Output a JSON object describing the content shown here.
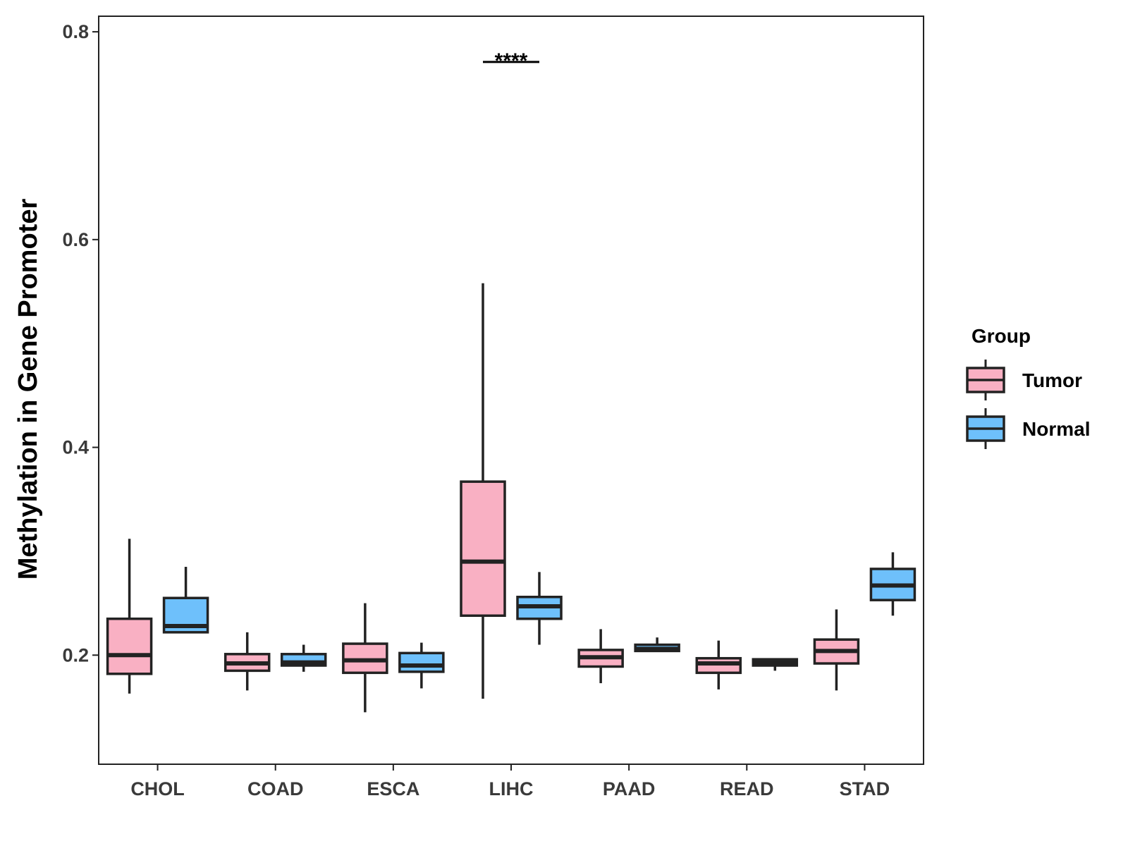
{
  "chart_data": {
    "type": "boxplot",
    "title": "",
    "xlabel": "",
    "ylabel": "Methylation in Gene Promoter",
    "ylim": [
      0.095,
      0.815
    ],
    "yticks": [
      "0.2",
      "0.4",
      "0.6",
      "0.8"
    ],
    "categories": [
      "CHOL",
      "COAD",
      "ESCA",
      "LIHC",
      "PAAD",
      "READ",
      "STAD"
    ],
    "legend": {
      "title": "Group",
      "position": "right",
      "entries": [
        "Tumor",
        "Normal"
      ]
    },
    "colors": {
      "Tumor": "#f9b0c3",
      "Normal": "#6ec0fb",
      "outline": "#222222"
    },
    "series": [
      {
        "name": "Tumor",
        "boxes": [
          {
            "min": 0.163,
            "q1": 0.182,
            "median": 0.2,
            "q3": 0.235,
            "max": 0.312
          },
          {
            "min": 0.166,
            "q1": 0.185,
            "median": 0.192,
            "q3": 0.201,
            "max": 0.222
          },
          {
            "min": 0.145,
            "q1": 0.183,
            "median": 0.195,
            "q3": 0.211,
            "max": 0.25
          },
          {
            "min": 0.158,
            "q1": 0.238,
            "median": 0.29,
            "q3": 0.367,
            "max": 0.558
          },
          {
            "min": 0.173,
            "q1": 0.189,
            "median": 0.198,
            "q3": 0.205,
            "max": 0.225
          },
          {
            "min": 0.167,
            "q1": 0.183,
            "median": 0.192,
            "q3": 0.197,
            "max": 0.214
          },
          {
            "min": 0.166,
            "q1": 0.192,
            "median": 0.204,
            "q3": 0.215,
            "max": 0.244
          }
        ]
      },
      {
        "name": "Normal",
        "boxes": [
          {
            "min": 0.221,
            "q1": 0.222,
            "median": 0.228,
            "q3": 0.255,
            "max": 0.285
          },
          {
            "min": 0.184,
            "q1": 0.19,
            "median": 0.193,
            "q3": 0.201,
            "max": 0.21
          },
          {
            "min": 0.168,
            "q1": 0.184,
            "median": 0.19,
            "q3": 0.202,
            "max": 0.212
          },
          {
            "min": 0.21,
            "q1": 0.235,
            "median": 0.247,
            "q3": 0.256,
            "max": 0.28
          },
          {
            "min": 0.203,
            "q1": 0.204,
            "median": 0.206,
            "q3": 0.21,
            "max": 0.217
          },
          {
            "min": 0.185,
            "q1": 0.19,
            "median": 0.193,
            "q3": 0.196,
            "max": 0.197
          },
          {
            "min": 0.238,
            "q1": 0.253,
            "median": 0.267,
            "q3": 0.283,
            "max": 0.299
          }
        ]
      }
    ],
    "annotations": [
      {
        "category": "LIHC",
        "text": "****",
        "y": 0.771
      }
    ]
  }
}
